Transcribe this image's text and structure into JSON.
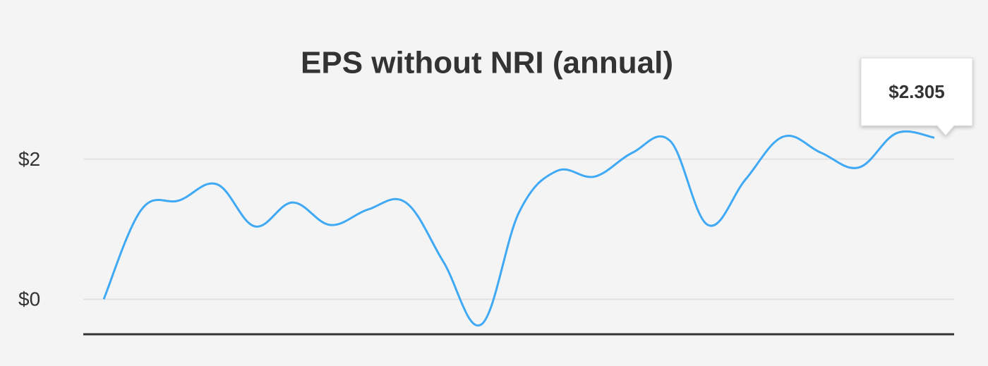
{
  "chart_data": {
    "type": "line",
    "title": "EPS without NRI (annual)",
    "categories": [
      null,
      null,
      null,
      null,
      null,
      null,
      null,
      null,
      null,
      null,
      null,
      null,
      null,
      null,
      null,
      null,
      null,
      null,
      null,
      null,
      null,
      null,
      null
    ],
    "series": [
      {
        "color": "#3fa9f5",
        "values": [
          0,
          1.28,
          1.41,
          1.64,
          1.04,
          1.38,
          1.06,
          1.28,
          1.38,
          0.53,
          -0.36,
          1.24,
          1.83,
          1.75,
          2.09,
          2.26,
          1.06,
          1.71,
          2.32,
          2.09,
          1.88,
          2.37,
          2.305
        ],
        "value_labels": [
          null,
          null,
          null,
          null,
          null,
          null,
          null,
          null,
          null,
          null,
          null,
          null,
          null,
          null,
          null,
          null,
          null,
          null,
          null,
          null,
          null,
          null,
          "$2.305"
        ]
      }
    ],
    "ylim": [
      -0.5,
      2.7
    ],
    "yticks": [
      {
        "value": 0,
        "label": "$0"
      },
      {
        "value": 2,
        "label": "$2"
      }
    ],
    "grid": true
  }
}
